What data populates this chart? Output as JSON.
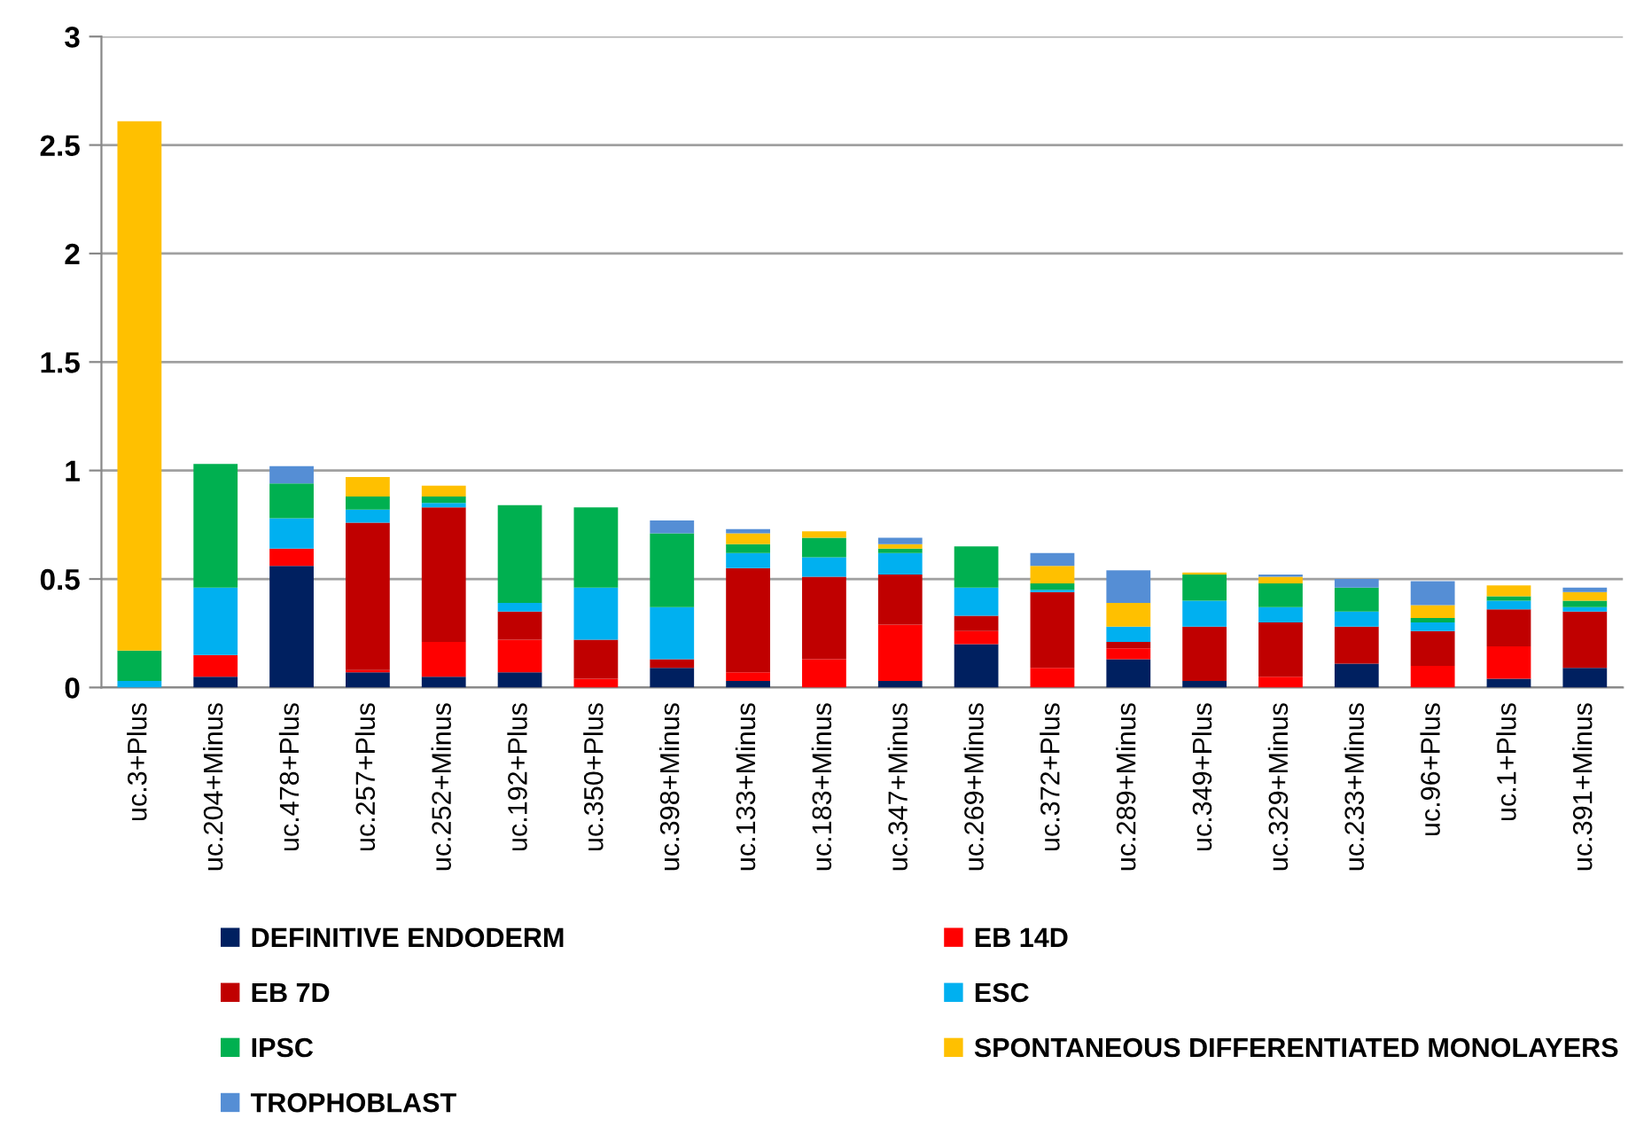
{
  "chart_data": {
    "type": "bar",
    "stacked": true,
    "categories": [
      "uc.3+Plus",
      "uc.204+Minus",
      "uc.478+Plus",
      "uc.257+Plus",
      "uc.252+Minus",
      "uc.192+Plus",
      "uc.350+Plus",
      "uc.398+Minus",
      "uc.133+Minus",
      "uc.183+Minus",
      "uc.347+Minus",
      "uc.269+Minus",
      "uc.372+Plus",
      "uc.289+Minus",
      "uc.349+Plus",
      "uc.329+Minus",
      "uc.233+Minus",
      "uc.96+Plus",
      "uc.1+Plus",
      "uc.391+Minus"
    ],
    "series": [
      {
        "name": "DEFINITIVE ENDODERM",
        "color": "#002060",
        "values": [
          0,
          0.05,
          0.56,
          0.07,
          0.05,
          0.07,
          0,
          0.09,
          0.03,
          0,
          0.03,
          0.2,
          0,
          0.13,
          0.03,
          0,
          0.11,
          0,
          0.04,
          0.09
        ]
      },
      {
        "name": "EB 14D",
        "color": "#ff0000",
        "values": [
          0,
          0.1,
          0.08,
          0.01,
          0.16,
          0.15,
          0.04,
          0,
          0.04,
          0.13,
          0.26,
          0.06,
          0.09,
          0.05,
          0,
          0.05,
          0,
          0.1,
          0.15,
          0
        ]
      },
      {
        "name": "EB 7D",
        "color": "#c00000",
        "values": [
          0,
          0,
          0,
          0.68,
          0.62,
          0.13,
          0.18,
          0.04,
          0.48,
          0.38,
          0.23,
          0.07,
          0.35,
          0.03,
          0.25,
          0.25,
          0.17,
          0.16,
          0.17,
          0.26
        ]
      },
      {
        "name": "ESC",
        "color": "#00b0f0",
        "values": [
          0.03,
          0.31,
          0.14,
          0.06,
          0.02,
          0.04,
          0.24,
          0.24,
          0.07,
          0.09,
          0.1,
          0.13,
          0.01,
          0.07,
          0.12,
          0.07,
          0.07,
          0.04,
          0.04,
          0.02
        ]
      },
      {
        "name": "IPSC",
        "color": "#00b050",
        "values": [
          0.14,
          0.57,
          0.16,
          0.06,
          0.03,
          0.45,
          0.37,
          0.34,
          0.04,
          0.09,
          0.02,
          0.19,
          0.03,
          0,
          0.12,
          0.11,
          0.11,
          0.02,
          0.02,
          0.03
        ]
      },
      {
        "name": "SPONTANEOUS DIFFERENTIATED MONOLAYERS",
        "color": "#ffc000",
        "values": [
          2.44,
          0,
          0,
          0.09,
          0.05,
          0,
          0,
          0,
          0.05,
          0.03,
          0.02,
          0,
          0.08,
          0.11,
          0.01,
          0.03,
          0,
          0.06,
          0.05,
          0.04
        ]
      },
      {
        "name": "TROPHOBLAST",
        "color": "#558ed5",
        "values": [
          0,
          0,
          0.08,
          0,
          0,
          0,
          0,
          0.06,
          0.02,
          0,
          0.03,
          0,
          0.06,
          0.15,
          0,
          0.01,
          0.04,
          0.11,
          0,
          0.02
        ]
      }
    ],
    "ylim": [
      0,
      3
    ],
    "yticks": [
      0,
      0.5,
      1,
      1.5,
      2,
      2.5,
      3
    ],
    "grid": "y",
    "legend": "bottom"
  }
}
